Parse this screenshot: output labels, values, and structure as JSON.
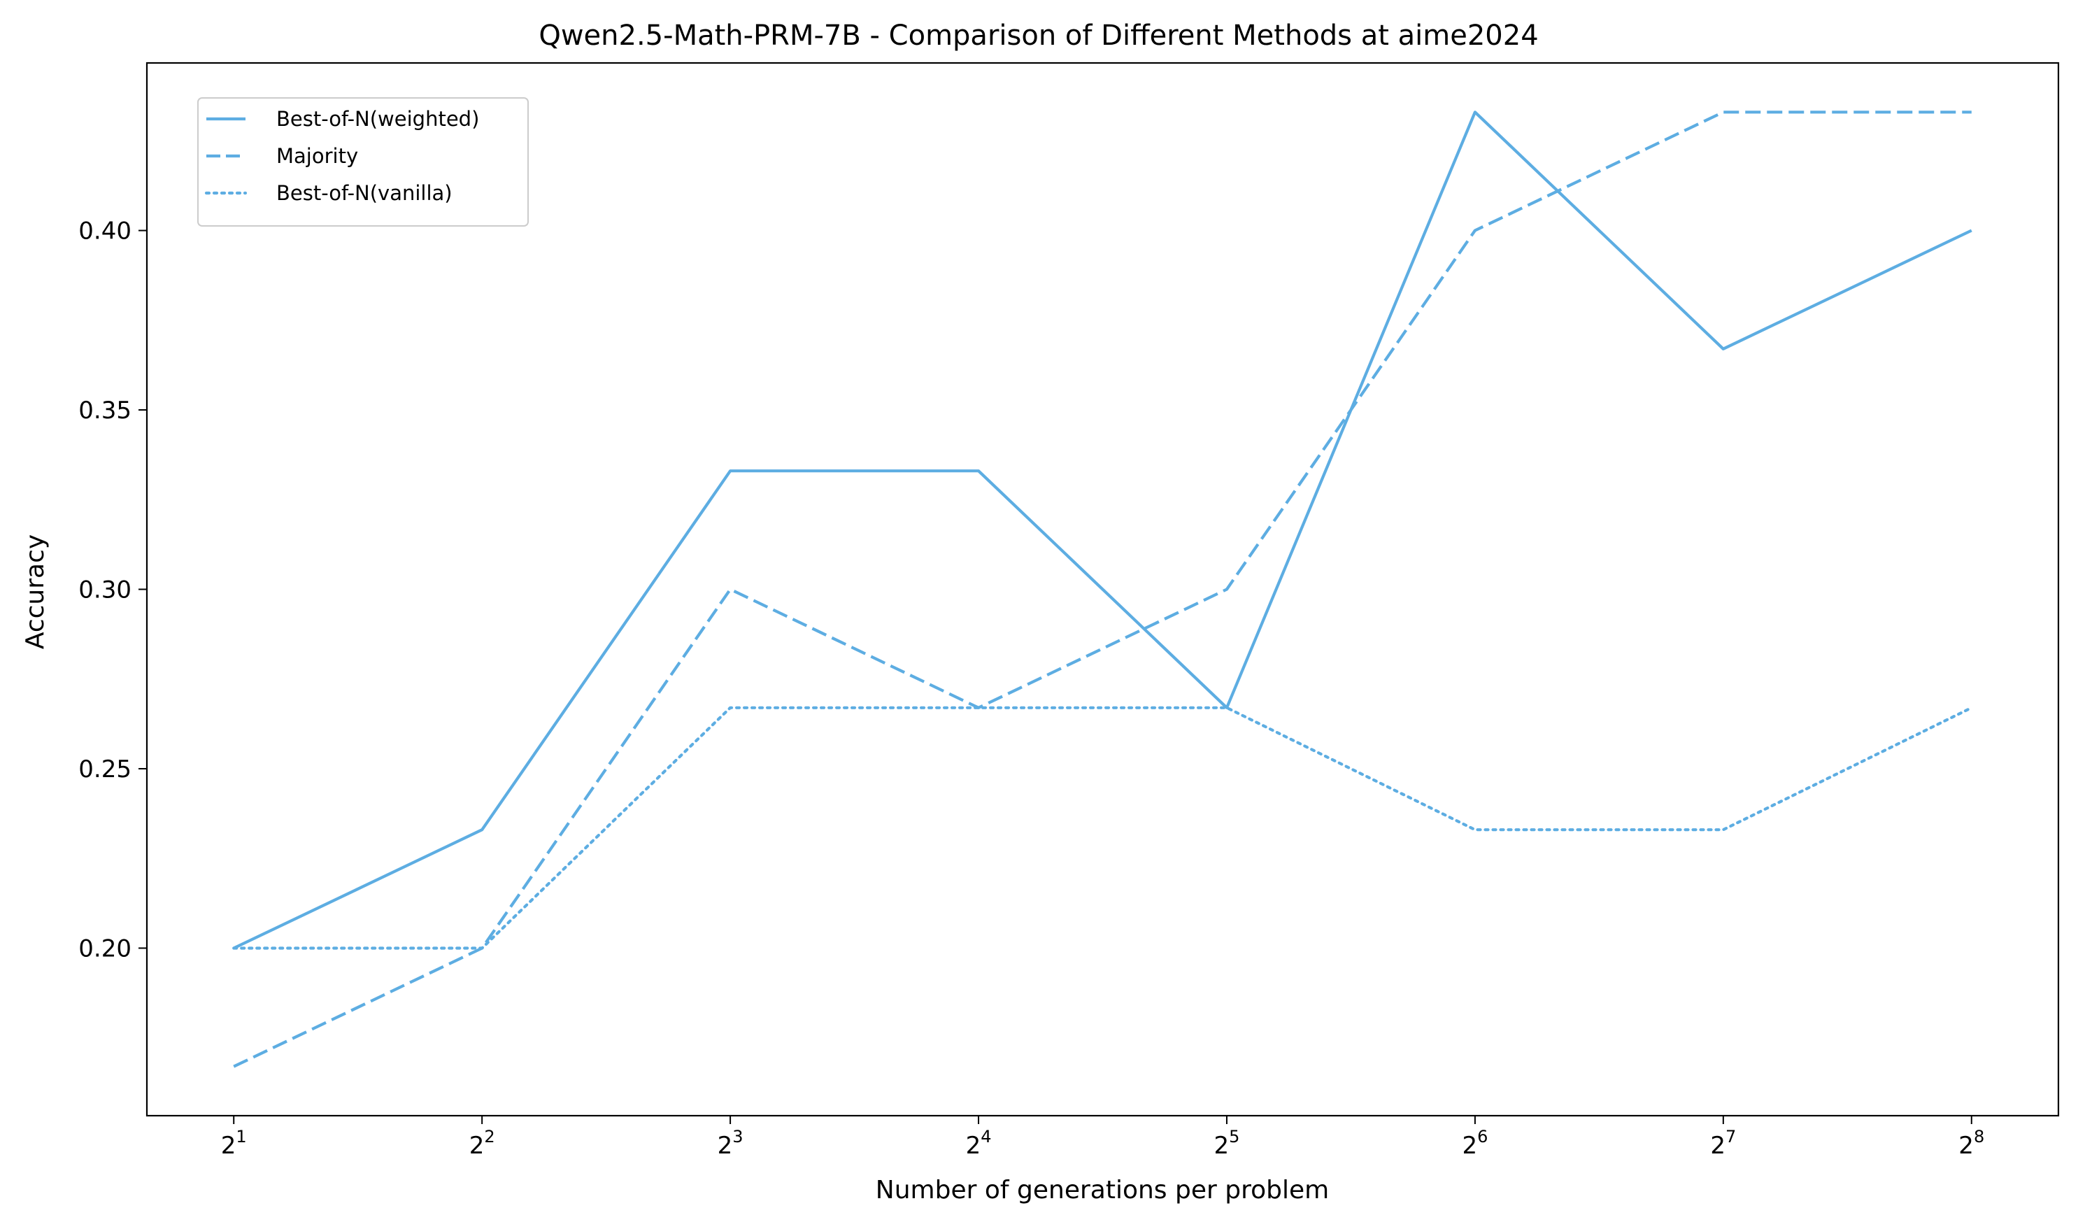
{
  "chart_data": {
    "type": "line",
    "title": "Qwen2.5-Math-PRM-7B - Comparison of Different Methods at aime2024",
    "xlabel": "Number of generations per problem",
    "ylabel": "Accuracy",
    "x": [
      2,
      4,
      8,
      16,
      32,
      64,
      128,
      256
    ],
    "x_scale": "log2",
    "x_tick_labels": [
      {
        "base": "2",
        "exp": "1"
      },
      {
        "base": "2",
        "exp": "2"
      },
      {
        "base": "2",
        "exp": "3"
      },
      {
        "base": "2",
        "exp": "4"
      },
      {
        "base": "2",
        "exp": "5"
      },
      {
        "base": "2",
        "exp": "6"
      },
      {
        "base": "2",
        "exp": "7"
      },
      {
        "base": "2",
        "exp": "8"
      }
    ],
    "ylim": [
      0.1533,
      0.4467
    ],
    "y_ticks": [
      0.2,
      0.25,
      0.3,
      0.35,
      0.4
    ],
    "y_tick_labels": [
      "0.20",
      "0.25",
      "0.30",
      "0.35",
      "0.40"
    ],
    "grid": false,
    "legend_position": "top-left",
    "series": [
      {
        "name": "Best-of-N(weighted)",
        "style": "solid",
        "color": "#5DADE2",
        "values": [
          0.2,
          0.233,
          0.333,
          0.333,
          0.267,
          0.433,
          0.367,
          0.4
        ]
      },
      {
        "name": "Majority",
        "style": "dashed",
        "color": "#5DADE2",
        "values": [
          0.167,
          0.2,
          0.3,
          0.267,
          0.3,
          0.4,
          0.433,
          0.433
        ]
      },
      {
        "name": "Best-of-N(vanilla)",
        "style": "dotted",
        "color": "#5DADE2",
        "values": [
          0.2,
          0.2,
          0.267,
          0.267,
          0.267,
          0.233,
          0.233,
          0.267
        ]
      }
    ]
  }
}
